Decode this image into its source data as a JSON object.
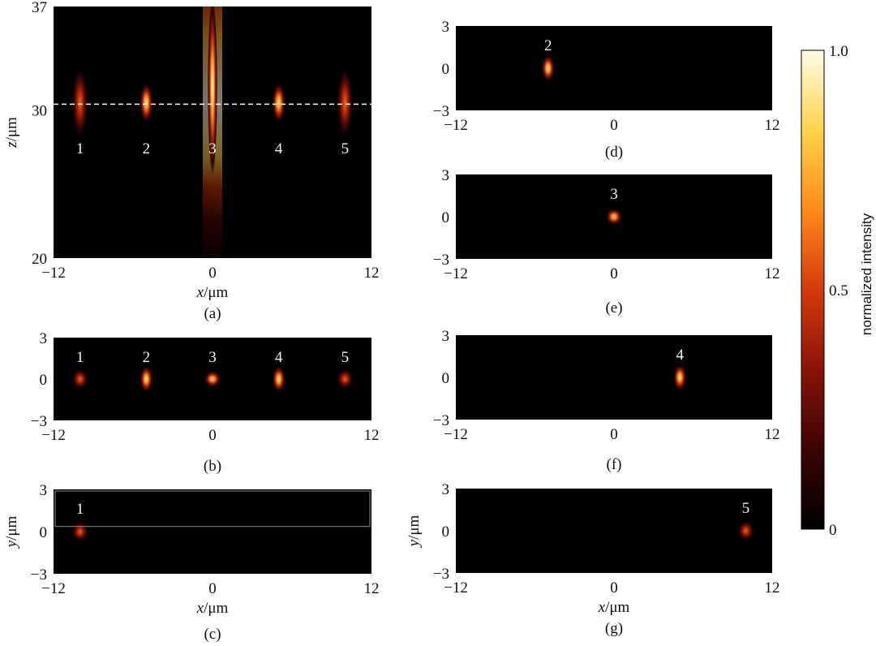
{
  "chart_data": [
    {
      "panel": "(a)",
      "type": "heatmap",
      "plane": "x-z",
      "xlabel_var": "x",
      "xlabel_unit": "/μm",
      "ylabel_var": "z",
      "ylabel_unit": "/μm",
      "xlim": [
        -12,
        12
      ],
      "ylim": [
        20,
        37
      ],
      "xticks": [
        "−12",
        "0",
        "12"
      ],
      "yticks": [
        "20",
        "30",
        "37"
      ],
      "reference_line_z": 30.4,
      "focal_spots": [
        {
          "label": "1",
          "x": -10,
          "z": 30.5,
          "z_extent": [
            28.5,
            32.5
          ],
          "peak": 0.6
        },
        {
          "label": "2",
          "x": -5,
          "z": 30.5,
          "z_extent": [
            29.5,
            31.5
          ],
          "peak": 0.95
        },
        {
          "label": "3",
          "x": 0,
          "z": 30.5,
          "z_extent": [
            20,
            37
          ],
          "peak": 1.0
        },
        {
          "label": "4",
          "x": 5,
          "z": 30.5,
          "z_extent": [
            29.5,
            31.5
          ],
          "peak": 0.95
        },
        {
          "label": "5",
          "x": 10,
          "z": 30.5,
          "z_extent": [
            28.5,
            32.5
          ],
          "peak": 0.6
        }
      ]
    },
    {
      "panel": "(b)",
      "type": "heatmap",
      "plane": "x-y",
      "xlim": [
        -12,
        12
      ],
      "ylim": [
        -3,
        3
      ],
      "xticks": [
        "−12",
        "0",
        "12"
      ],
      "yticks": [
        "−3",
        "0",
        "3"
      ],
      "focal_spots": [
        {
          "label": "1",
          "x": -10,
          "y": 0,
          "peak": 0.6
        },
        {
          "label": "2",
          "x": -5,
          "y": 0,
          "peak": 0.95
        },
        {
          "label": "3",
          "x": 0,
          "y": 0,
          "peak": 0.9
        },
        {
          "label": "4",
          "x": 5,
          "y": 0,
          "peak": 0.95
        },
        {
          "label": "5",
          "x": 10,
          "y": 0,
          "peak": 0.6
        }
      ]
    },
    {
      "panel": "(c)",
      "type": "heatmap",
      "plane": "x-y",
      "xlabel_var": "x",
      "xlabel_unit": "/μm",
      "ylabel_var": "y",
      "ylabel_unit": "/μm",
      "xlim": [
        -12,
        12
      ],
      "ylim": [
        -3,
        3
      ],
      "xticks": [
        "−12",
        "0",
        "12"
      ],
      "yticks": [
        "−3",
        "0",
        "3"
      ],
      "focal_spots": [
        {
          "label": "1",
          "x": -10,
          "y": 0,
          "peak": 0.6
        }
      ]
    },
    {
      "panel": "(d)",
      "type": "heatmap",
      "plane": "x-y",
      "xlim": [
        -12,
        12
      ],
      "ylim": [
        -3,
        3
      ],
      "xticks": [
        "−12",
        "0",
        "12"
      ],
      "yticks": [
        "−3",
        "0",
        "3"
      ],
      "focal_spots": [
        {
          "label": "2",
          "x": -5,
          "y": 0,
          "peak": 0.95
        }
      ]
    },
    {
      "panel": "(e)",
      "type": "heatmap",
      "plane": "x-y",
      "xlim": [
        -12,
        12
      ],
      "ylim": [
        -3,
        3
      ],
      "xticks": [
        "−12",
        "0",
        "12"
      ],
      "yticks": [
        "−3",
        "0",
        "3"
      ],
      "focal_spots": [
        {
          "label": "3",
          "x": 0,
          "y": 0,
          "peak": 0.9
        }
      ]
    },
    {
      "panel": "(f)",
      "type": "heatmap",
      "plane": "x-y",
      "xlim": [
        -12,
        12
      ],
      "ylim": [
        -3,
        3
      ],
      "xticks": [
        "−12",
        "0",
        "12"
      ],
      "yticks": [
        "−3",
        "0",
        "3"
      ],
      "focal_spots": [
        {
          "label": "4",
          "x": 5,
          "y": 0,
          "peak": 0.95
        }
      ]
    },
    {
      "panel": "(g)",
      "type": "heatmap",
      "plane": "x-y",
      "xlabel_var": "x",
      "xlabel_unit": "/μm",
      "ylabel_var": "y",
      "ylabel_unit": "/μm",
      "xlim": [
        -12,
        12
      ],
      "ylim": [
        -3,
        3
      ],
      "xticks": [
        "−12",
        "0",
        "12"
      ],
      "yticks": [
        "−3",
        "0",
        "3"
      ],
      "focal_spots": [
        {
          "label": "5",
          "x": 10,
          "y": 0,
          "peak": 0.6
        }
      ]
    }
  ],
  "colorbar": {
    "title": "normalized intensity",
    "range": [
      0,
      1
    ],
    "ticks": [
      "1.0",
      "0.5",
      "0"
    ],
    "colormap": [
      "#000000",
      "#3a0404",
      "#8a1208",
      "#d43a0c",
      "#ff8a1c",
      "#ffd24a",
      "#fffbe8"
    ]
  }
}
